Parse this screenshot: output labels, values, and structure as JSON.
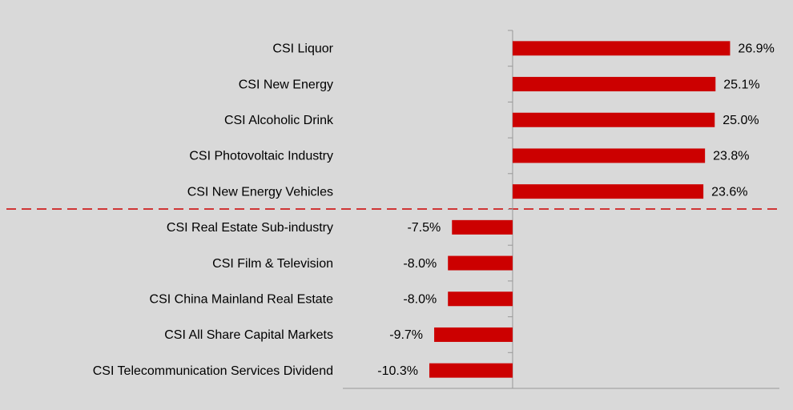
{
  "chart_data": {
    "type": "bar",
    "orientation": "horizontal",
    "categories": [
      "CSI Liquor",
      "CSI New Energy",
      "CSI Alcoholic Drink",
      "CSI Photovoltaic Industry",
      "CSI New Energy Vehicles",
      "CSI Real Estate Sub-industry",
      "CSI Film & Television",
      "CSI China Mainland Real Estate",
      "CSI All Share Capital Markets",
      "CSI Telecommunication Services Dividend"
    ],
    "values": [
      26.9,
      25.1,
      25.0,
      23.8,
      23.6,
      -7.5,
      -8.0,
      -8.0,
      -9.7,
      -10.3
    ],
    "value_labels": [
      "26.9%",
      "25.1%",
      "25.0%",
      "23.8%",
      "23.6%",
      "-7.5%",
      "-8.0%",
      "-8.0%",
      "-9.7%",
      "-10.3%"
    ],
    "color": "#cc0000",
    "xlim": [
      -21,
      33
    ]
  }
}
